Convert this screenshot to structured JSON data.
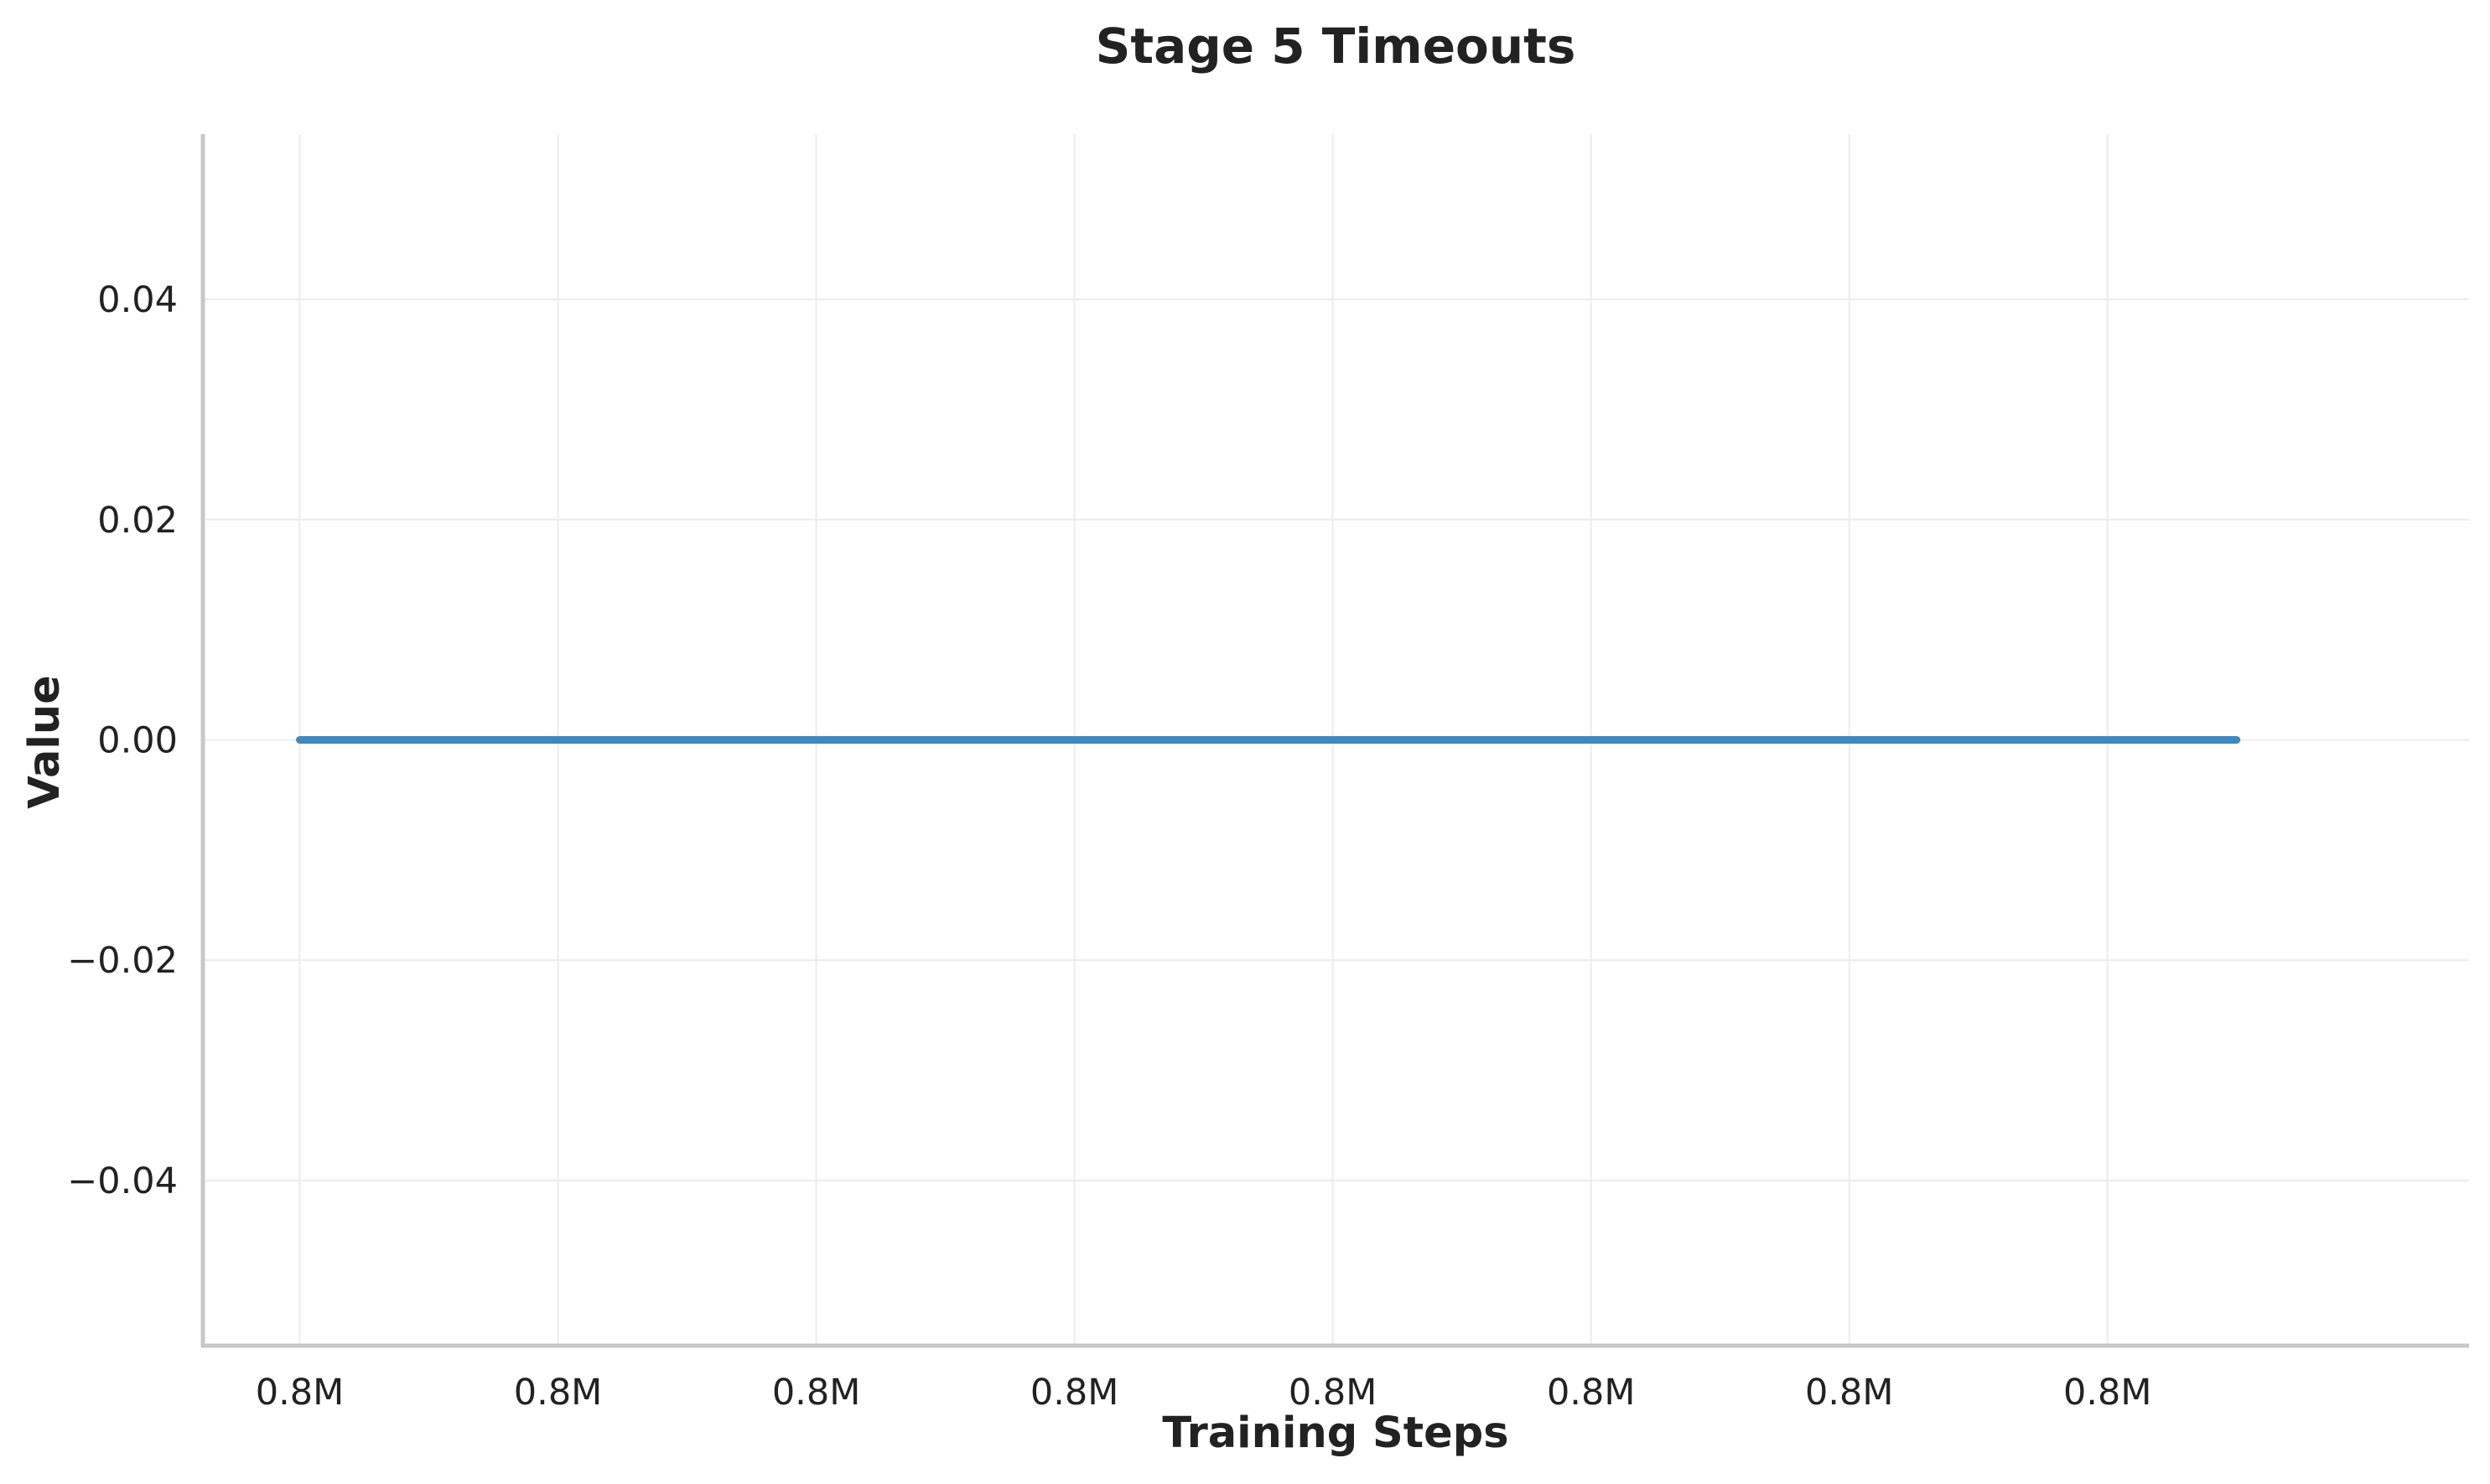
{
  "chart_data": {
    "type": "line",
    "title": "Stage 5 Timeouts",
    "xlabel": "Training Steps",
    "ylabel": "Value",
    "x_tick_labels": [
      "0.8M",
      "0.8M",
      "0.8M",
      "0.8M",
      "0.8M",
      "0.8M",
      "0.8M",
      "0.8M"
    ],
    "y_ticks": [
      -0.04,
      -0.02,
      0.0,
      0.02,
      0.04
    ],
    "y_tick_labels": [
      "−0.04",
      "−0.02",
      "0.00",
      "0.02",
      "0.04"
    ],
    "ylim": [
      -0.055,
      0.055
    ],
    "xlim": [
      -0.375,
      8.4
    ],
    "grid": true,
    "legend": "none",
    "series": [
      {
        "color": "#3f88bd",
        "x": [
          0,
          1,
          2,
          3,
          4,
          5,
          6,
          7,
          7.5
        ],
        "y": [
          0,
          0,
          0,
          0,
          0,
          0,
          0,
          0,
          0
        ]
      }
    ]
  }
}
